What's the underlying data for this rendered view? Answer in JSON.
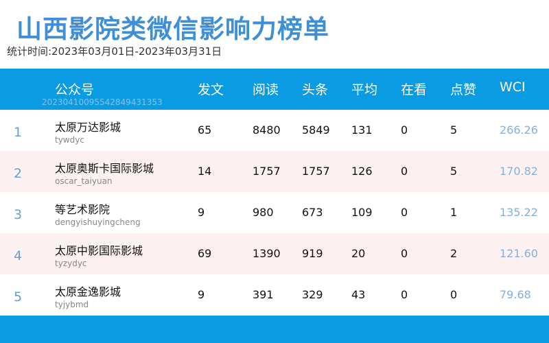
{
  "title": "山西影院类微信影响力榜单",
  "subtitle": "统计时间:2023年03月01日-2023年03月31日",
  "colors": {
    "header": "#0b9be3",
    "title": "#3f8fd6",
    "rank": "#6a9fd0",
    "wci": "#84b1db",
    "alt_row": "#fdf1f1"
  },
  "table": {
    "headers": [
      "公众号",
      "发文",
      "阅读",
      "头条",
      "平均",
      "在看",
      "点赞",
      "WCI"
    ],
    "code": "20230410095542849431353",
    "rows": [
      {
        "rank": "1",
        "name": "太原万达影城",
        "account": "tywdyc",
        "posts": "65",
        "reads": "8480",
        "headline": "5849",
        "avg": "131",
        "watching": "0",
        "likes": "5",
        "wci": "266.26"
      },
      {
        "rank": "2",
        "name": "太原奥斯卡国际影城",
        "account": "oscar_taiyuan",
        "posts": "14",
        "reads": "1757",
        "headline": "1757",
        "avg": "126",
        "watching": "0",
        "likes": "5",
        "wci": "170.82"
      },
      {
        "rank": "3",
        "name": "等艺术影院",
        "account": "dengyishuyingcheng",
        "posts": "9",
        "reads": "980",
        "headline": "673",
        "avg": "109",
        "watching": "0",
        "likes": "1",
        "wci": "135.22"
      },
      {
        "rank": "4",
        "name": "太原中影国际影城",
        "account": "tyzydyc",
        "posts": "69",
        "reads": "1390",
        "headline": "919",
        "avg": "20",
        "watching": "0",
        "likes": "2",
        "wci": "121.60"
      },
      {
        "rank": "5",
        "name": "太原金逸影城",
        "account": "tyjybmd",
        "posts": "9",
        "reads": "391",
        "headline": "329",
        "avg": "43",
        "watching": "0",
        "likes": "0",
        "wci": "79.68"
      }
    ]
  }
}
